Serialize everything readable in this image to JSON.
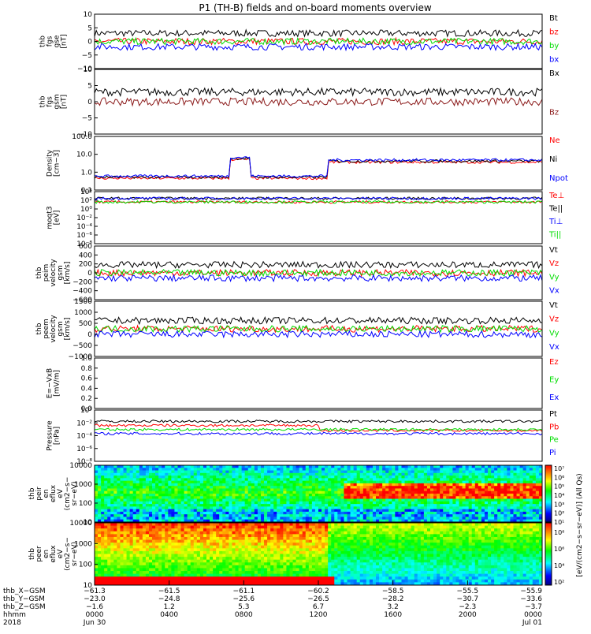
{
  "title": "P1 (TH-B) fields and on-board moments overview",
  "colors": {
    "black": "#000000",
    "red": "#ff0000",
    "green": "#00dd00",
    "blue": "#0000ff"
  },
  "chart_data": [
    {
      "id": "fgs_gse",
      "type": "line",
      "ylabel": [
        "thb",
        "fgs",
        "gse",
        "[nT]"
      ],
      "ylim": [
        -10,
        10
      ],
      "ticks": [
        "10",
        "5",
        "0",
        "−5",
        "−10"
      ],
      "legend": [
        {
          "name": "Bt",
          "color": "#000000"
        },
        {
          "name": "bz",
          "color": "#ff0000"
        },
        {
          "name": "by",
          "color": "#00dd00"
        },
        {
          "name": "bx",
          "color": "#0000ff"
        }
      ]
    },
    {
      "id": "fgs_gsm",
      "type": "line",
      "ylabel": [
        "thb",
        "fgs",
        "gsm",
        "[nT]"
      ],
      "ylim": [
        -10,
        10
      ],
      "ticks": [
        "10",
        "5",
        "0",
        "−5",
        "−10"
      ],
      "legend": [
        {
          "name": "Bx",
          "color": "#000000"
        },
        {
          "name": "Bz",
          "color": "#8b1a1a"
        }
      ]
    },
    {
      "id": "density",
      "type": "line",
      "ylabel": [
        "Density",
        "[cm−3]"
      ],
      "scale": "log",
      "ticks": [
        "100.0",
        "10.0",
        "1.0",
        "0.1"
      ],
      "legend": [
        {
          "name": "Ne",
          "color": "#ff0000"
        },
        {
          "name": "Ni",
          "color": "#000000"
        },
        {
          "name": "Npot",
          "color": "#0000ff"
        }
      ]
    },
    {
      "id": "temperature",
      "type": "line",
      "ylabel": [
        "moqt3",
        "[eV]"
      ],
      "scale": "log",
      "ticks": [
        "10⁴",
        "10²",
        "10⁰",
        "10⁻²",
        "10⁻⁴",
        "10⁻⁶",
        "10⁻⁸"
      ],
      "legend": [
        {
          "name": "Te⊥",
          "color": "#ff0000"
        },
        {
          "name": "Te||",
          "color": "#000000"
        },
        {
          "name": "Ti⊥",
          "color": "#0000ff"
        },
        {
          "name": "Ti||",
          "color": "#00dd00"
        }
      ]
    },
    {
      "id": "peim_vel",
      "type": "line",
      "ylabel": [
        "thb",
        "peim",
        "velocity",
        "gsm",
        "[km/s]"
      ],
      "ylim": [
        -600,
        600
      ],
      "ticks": [
        "600",
        "400",
        "200",
        "0",
        "−200",
        "−400",
        "−600"
      ],
      "legend": [
        {
          "name": "Vt",
          "color": "#000000"
        },
        {
          "name": "Vz",
          "color": "#ff0000"
        },
        {
          "name": "Vy",
          "color": "#00dd00"
        },
        {
          "name": "Vx",
          "color": "#0000ff"
        }
      ]
    },
    {
      "id": "peem_vel",
      "type": "line",
      "ylabel": [
        "thb",
        "peem",
        "velocity",
        "gsm",
        "[km/s]"
      ],
      "ylim": [
        -1000,
        1500
      ],
      "ticks": [
        "1500",
        "1000",
        "500",
        "0",
        "−500",
        "−1000"
      ],
      "legend": [
        {
          "name": "Vt",
          "color": "#000000"
        },
        {
          "name": "Vz",
          "color": "#ff0000"
        },
        {
          "name": "Vy",
          "color": "#00dd00"
        },
        {
          "name": "Vx",
          "color": "#0000ff"
        }
      ]
    },
    {
      "id": "efield",
      "type": "line",
      "ylabel": [
        "E=−VxB",
        "[mV/m]"
      ],
      "ylim": [
        0,
        1
      ],
      "ticks": [
        "1.0",
        "0.8",
        "0.6",
        "0.4",
        "0.2",
        "0.0"
      ],
      "legend": [
        {
          "name": "Ez",
          "color": "#ff0000"
        },
        {
          "name": "Ey",
          "color": "#00dd00"
        },
        {
          "name": "Ex",
          "color": "#0000ff"
        }
      ]
    },
    {
      "id": "pressure",
      "type": "line",
      "ylabel": [
        "Pressure",
        "[nPa]"
      ],
      "scale": "log",
      "ticks": [
        "10⁰",
        "10⁻²",
        "10⁻⁴",
        "10⁻⁶",
        "10⁻⁸"
      ],
      "legend": [
        {
          "name": "Pt",
          "color": "#000000"
        },
        {
          "name": "Pb",
          "color": "#ff0000"
        },
        {
          "name": "Pe",
          "color": "#00dd00"
        },
        {
          "name": "Pi",
          "color": "#0000ff"
        }
      ]
    },
    {
      "id": "peir",
      "type": "heatmap",
      "ylabel": [
        "thb",
        "peir",
        "en",
        "eflux",
        "eV",
        "(cm2−s−",
        "sr−eV)"
      ],
      "scale": "log",
      "ticks": [
        "10000",
        "1000",
        "100",
        "10"
      ]
    },
    {
      "id": "peer",
      "type": "heatmap",
      "ylabel": [
        "thb",
        "peer",
        "en",
        "eflux",
        "eV",
        "(cm2−s−",
        "sr−eV)"
      ],
      "scale": "log",
      "ticks": [
        "10000",
        "1000",
        "100",
        "10"
      ]
    }
  ],
  "colorbar": {
    "label": "[eV/(cm2−s−sr−eV)] (All Qs)",
    "upper_ticks": [
      "10⁷",
      "10⁶",
      "10⁵",
      "10⁴",
      "10³",
      "10²",
      "10¹"
    ],
    "lower_ticks": [
      "10⁸",
      "10⁶",
      "10⁴",
      "10²"
    ]
  },
  "xaxis": {
    "rows": [
      {
        "label": "thb_X−GSM",
        "values": [
          "−61.3",
          "−61.5",
          "−61.1",
          "−60.2",
          "−58.5",
          "−55.5",
          "−55.9"
        ]
      },
      {
        "label": "thb_Y−GSM",
        "values": [
          "−23.0",
          "−24.8",
          "−25.6",
          "−26.5",
          "−28.2",
          "−30.7",
          "−33.6"
        ]
      },
      {
        "label": "thb_Z−GSM",
        "values": [
          "−1.6",
          "1.2",
          "5.3",
          "6.7",
          "3.2",
          "−2.3",
          "−3.7"
        ]
      },
      {
        "label": "hhmm",
        "values": [
          "0000",
          "0400",
          "0800",
          "1200",
          "1600",
          "2000",
          "0000"
        ]
      },
      {
        "label": "2018",
        "values": [
          "Jun 30",
          "",
          "",
          "",
          "",
          "",
          "Jul 01"
        ]
      }
    ]
  }
}
